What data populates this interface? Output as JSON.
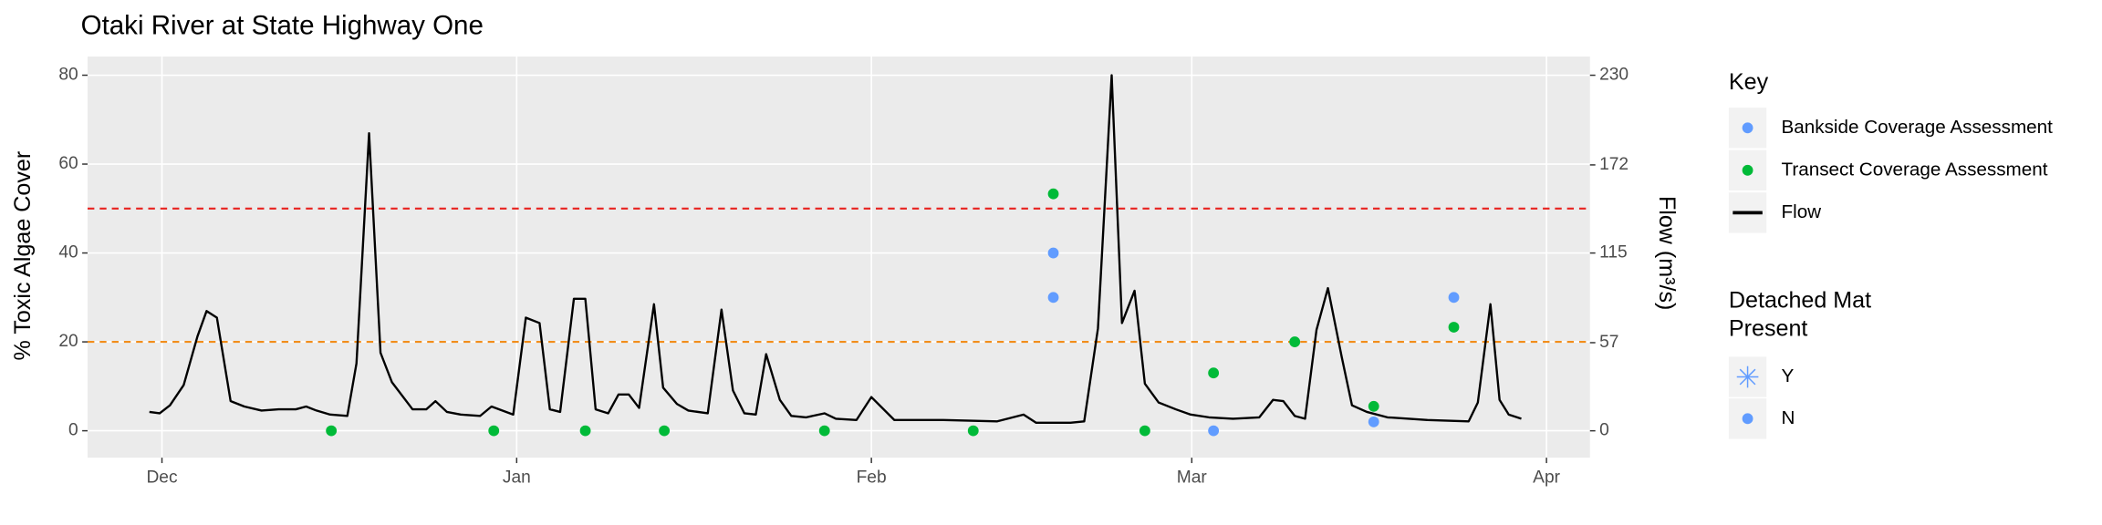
{
  "chart_data": {
    "type": "line",
    "title": "Otaki River at State Highway One",
    "y_label": "% Toxic Algae Cover",
    "y2_label": "Flow (m³/s)",
    "xlim": [
      -6.5,
      124.8
    ],
    "xticks": [
      {
        "value": 0,
        "label": "Dec"
      },
      {
        "value": 31,
        "label": "Jan"
      },
      {
        "value": 62,
        "label": "Feb"
      },
      {
        "value": 90,
        "label": "Mar"
      },
      {
        "value": 121,
        "label": "Apr"
      }
    ],
    "ylim": [
      -6.06,
      84.2
    ],
    "yticks": [
      0,
      20,
      40,
      60,
      80
    ],
    "y2lim": [
      -17.4,
      242.1
    ],
    "y2ticks": [
      0,
      57,
      115,
      172,
      230
    ],
    "grid": true,
    "hlines": [
      {
        "value": 50,
        "color": "#e8231f"
      },
      {
        "value": 20,
        "color": "#f28e1c"
      }
    ],
    "series": [
      {
        "name": "Bankside Coverage Assessment",
        "type": "scatter",
        "color": "#619CFF",
        "x": [
          77.9,
          77.9,
          91.9,
          105.9,
          112.9
        ],
        "values": [
          40,
          30,
          0,
          2,
          30
        ]
      },
      {
        "name": "Transect Coverage Assessment",
        "type": "scatter",
        "color": "#00BA38",
        "x": [
          14.8,
          29.0,
          37.0,
          43.9,
          57.9,
          70.9,
          77.9,
          85.9,
          91.9,
          99.0,
          105.9,
          112.9
        ],
        "values": [
          0,
          0,
          0,
          0,
          0,
          0,
          53.3,
          0,
          13,
          20,
          5.5,
          23.3
        ]
      },
      {
        "name": "Flow",
        "type": "line",
        "color": "#000000",
        "axis": "y2",
        "x": [
          -1.1,
          -0.2,
          0.7,
          1.9,
          3.1,
          3.9,
          4.8,
          6.0,
          7.2,
          8.7,
          10.2,
          11.7,
          12.6,
          13.5,
          14.7,
          16.2,
          17.0,
          18.1,
          19.1,
          20.1,
          21.9,
          23.1,
          23.9,
          24.9,
          26.1,
          27.8,
          28.8,
          30.7,
          31.8,
          33.0,
          33.9,
          34.8,
          36.0,
          37.0,
          37.9,
          39.0,
          39.9,
          40.8,
          41.7,
          43.0,
          43.8,
          45.0,
          46.0,
          47.7,
          48.9,
          49.9,
          50.9,
          51.9,
          52.8,
          54.0,
          55.0,
          56.3,
          57.9,
          58.9,
          60.7,
          62.0,
          64.0,
          68.3,
          73.0,
          75.3,
          76.4,
          79.4,
          80.6,
          81.8,
          83.0,
          83.9,
          85.0,
          85.9,
          87.1,
          88.6,
          89.9,
          91.5,
          93.6,
          95.9,
          97.1,
          98.0,
          99.0,
          99.9,
          100.9,
          101.9,
          103.1,
          104.0,
          105.3,
          107.1,
          110.6,
          114.2,
          115.0,
          116.1,
          116.9,
          117.7,
          118.8
        ],
        "values": [
          12.2,
          11.3,
          16.5,
          29.6,
          61,
          77.5,
          73.2,
          19.2,
          15.7,
          13.1,
          13.9,
          13.9,
          15.7,
          13.1,
          10.5,
          9.6,
          43.6,
          192.5,
          50.5,
          31.4,
          13.9,
          13.9,
          19.2,
          12.2,
          10.5,
          9.6,
          15.7,
          10.5,
          73.2,
          69.7,
          13.9,
          12.2,
          85.4,
          85.4,
          13.9,
          11.3,
          23.5,
          23.5,
          14.8,
          81.9,
          27.9,
          17.4,
          13.1,
          11.3,
          78.4,
          26.1,
          11.3,
          10.5,
          49.6,
          20,
          9.6,
          8.7,
          11.3,
          7.8,
          7,
          21.8,
          7,
          7,
          6.1,
          10.5,
          5.2,
          5.2,
          6.1,
          66.2,
          230,
          69.7,
          90.6,
          30.5,
          18.3,
          13.9,
          10.5,
          8.7,
          7.8,
          8.7,
          20,
          19.2,
          9.6,
          7.8,
          65.3,
          92.3,
          47.9,
          16.5,
          12.2,
          8.7,
          7,
          6.1,
          18.3,
          81.9,
          20,
          10.5,
          7.8
        ]
      }
    ],
    "legend": {
      "title": "Key"
    },
    "shape_legend": {
      "title_lines": [
        "Detached Mat",
        "Present"
      ],
      "items": [
        "Y",
        "N"
      ],
      "color": "#619CFF"
    }
  }
}
